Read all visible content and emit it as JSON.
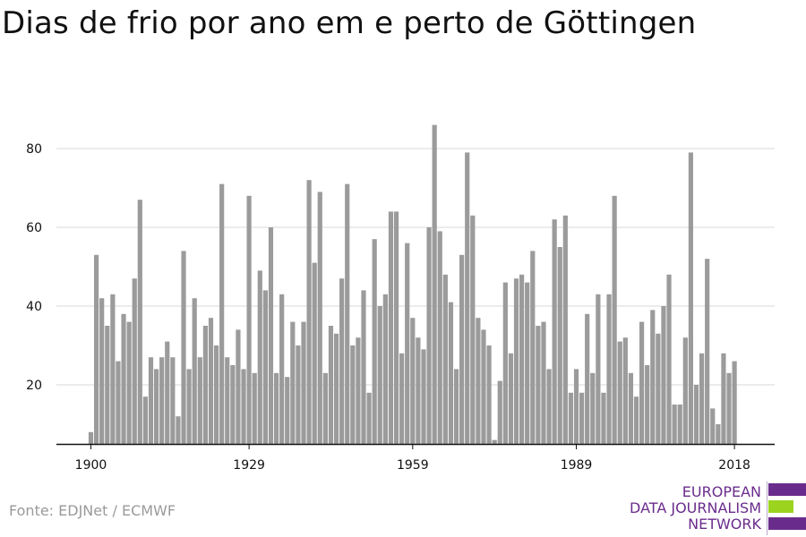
{
  "title": "Dias de frio por ano em e perto de Göttingen",
  "source": "Fonte: EDJNet / ECMWF",
  "logo": {
    "line1": "EUROPEAN",
    "line2": "DATA JOURNALISM",
    "line3": "NETWORK"
  },
  "colors": {
    "bar": "#9b9b9b",
    "grid": "#d9d9d9",
    "axis": "#111111",
    "logo_purple": "#6a2c8c",
    "logo_green": "#9bd31f"
  },
  "chart_data": {
    "type": "bar",
    "title": "Dias de frio por ano em e perto de Göttingen",
    "xlabel": "",
    "ylabel": "",
    "x_start": 1900,
    "x_ticks": [
      "1900",
      "1929",
      "1959",
      "1989",
      "2018"
    ],
    "y_ticks": [
      20,
      40,
      60,
      80
    ],
    "ylim": [
      5,
      91
    ],
    "grid": "horizontal",
    "values": [
      8,
      53,
      42,
      35,
      43,
      26,
      38,
      36,
      47,
      67,
      17,
      27,
      24,
      27,
      31,
      27,
      12,
      54,
      24,
      42,
      27,
      35,
      37,
      30,
      71,
      27,
      25,
      34,
      24,
      68,
      23,
      49,
      44,
      60,
      23,
      43,
      22,
      36,
      30,
      36,
      72,
      51,
      69,
      23,
      35,
      33,
      47,
      71,
      30,
      32,
      44,
      18,
      57,
      40,
      43,
      64,
      64,
      28,
      56,
      37,
      32,
      29,
      60,
      86,
      59,
      48,
      41,
      24,
      53,
      79,
      63,
      37,
      34,
      30,
      6,
      21,
      46,
      28,
      47,
      48,
      46,
      54,
      35,
      36,
      24,
      62,
      55,
      63,
      18,
      24,
      18,
      38,
      23,
      43,
      18,
      43,
      68,
      31,
      32,
      23,
      17,
      36,
      25,
      39,
      33,
      40,
      48,
      15,
      15,
      32,
      79,
      20,
      28,
      52,
      14,
      10,
      28,
      23,
      26
    ]
  }
}
